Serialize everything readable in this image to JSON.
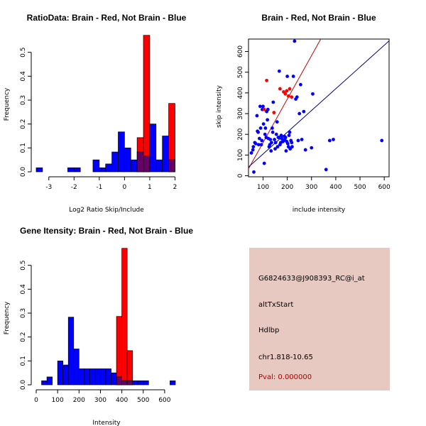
{
  "colors": {
    "red": "#ff0000",
    "blue": "#0000ff",
    "overlap": "#660066",
    "red_line": "#cc0000",
    "blue_line": "#000080",
    "panel_bg": "#e8c9c2",
    "pval_text": "#aa0000"
  },
  "chart_data": [
    {
      "type": "bar",
      "subtype": "overlaid-histogram",
      "title": "RatioData: Brain - Red, Not Brain - Blue",
      "xlabel": "Log2 Ratio Skip/Include",
      "ylabel": "Frequency",
      "xlim": [
        -3.5,
        2.1
      ],
      "ylim": [
        0,
        0.6
      ],
      "xticks": [
        -3,
        -2,
        -1,
        0,
        1,
        2
      ],
      "yticks": [
        0.0,
        0.1,
        0.2,
        0.3,
        0.4,
        0.5
      ],
      "series": [
        {
          "name": "Not Brain",
          "color": "blue",
          "bins": [
            {
              "x0": -3.5,
              "x1": -3.25,
              "value": 0.017
            },
            {
              "x0": -2.25,
              "x1": -2.0,
              "value": 0.017
            },
            {
              "x0": -2.0,
              "x1": -1.75,
              "value": 0.017
            },
            {
              "x0": -1.25,
              "x1": -1.0,
              "value": 0.05
            },
            {
              "x0": -1.0,
              "x1": -0.75,
              "value": 0.017
            },
            {
              "x0": -0.75,
              "x1": -0.5,
              "value": 0.033
            },
            {
              "x0": -0.5,
              "x1": -0.25,
              "value": 0.083
            },
            {
              "x0": -0.25,
              "x1": 0.0,
              "value": 0.167
            },
            {
              "x0": 0.0,
              "x1": 0.25,
              "value": 0.1
            },
            {
              "x0": 0.25,
              "x1": 0.5,
              "value": 0.05
            },
            {
              "x0": 0.5,
              "x1": 0.75,
              "value": 0.083
            },
            {
              "x0": 0.75,
              "x1": 1.0,
              "value": 0.067
            },
            {
              "x0": 1.0,
              "x1": 1.25,
              "value": 0.2
            },
            {
              "x0": 1.25,
              "x1": 1.5,
              "value": 0.05
            },
            {
              "x0": 1.5,
              "x1": 1.75,
              "value": 0.15
            },
            {
              "x0": 1.75,
              "x1": 2.0,
              "value": 0.05
            }
          ]
        },
        {
          "name": "Brain",
          "color": "red",
          "bins": [
            {
              "x0": 0.5,
              "x1": 0.75,
              "value": 0.143
            },
            {
              "x0": 0.75,
              "x1": 1.0,
              "value": 0.571
            },
            {
              "x0": 1.75,
              "x1": 2.0,
              "value": 0.286
            }
          ]
        }
      ]
    },
    {
      "type": "scatter",
      "title": "Brain - Red, Not Brain - Blue",
      "xlabel": "include intensity",
      "ylabel": "skip intensity",
      "xlim": [
        40,
        620
      ],
      "ylim": [
        -5,
        660
      ],
      "xticks": [
        100,
        200,
        300,
        400,
        500,
        600
      ],
      "yticks": [
        0,
        100,
        200,
        300,
        400,
        500,
        600
      ],
      "series": [
        {
          "name": "Not Brain",
          "color": "blue",
          "points": [
            [
              52,
              110
            ],
            [
              58,
              125
            ],
            [
              60,
              140
            ],
            [
              62,
              18
            ],
            [
              66,
              160
            ],
            [
              70,
              155
            ],
            [
              75,
              290
            ],
            [
              77,
              215
            ],
            [
              80,
              210
            ],
            [
              82,
              150
            ],
            [
              85,
              180
            ],
            [
              88,
              335
            ],
            [
              90,
              230
            ],
            [
              93,
              150
            ],
            [
              95,
              170
            ],
            [
              97,
              320
            ],
            [
              100,
              335
            ],
            [
              102,
              250
            ],
            [
              105,
              60
            ],
            [
              108,
              200
            ],
            [
              110,
              230
            ],
            [
              113,
              185
            ],
            [
              115,
              310
            ],
            [
              118,
              270
            ],
            [
              120,
              320
            ],
            [
              122,
              180
            ],
            [
              125,
              140
            ],
            [
              128,
              150
            ],
            [
              130,
              175
            ],
            [
              133,
              120
            ],
            [
              135,
              160
            ],
            [
              138,
              230
            ],
            [
              140,
              210
            ],
            [
              142,
              355
            ],
            [
              147,
              175
            ],
            [
              150,
              130
            ],
            [
              152,
              160
            ],
            [
              155,
              200
            ],
            [
              158,
              260
            ],
            [
              160,
              140
            ],
            [
              163,
              185
            ],
            [
              165,
              185
            ],
            [
              167,
              505
            ],
            [
              170,
              150
            ],
            [
              173,
              160
            ],
            [
              175,
              195
            ],
            [
              177,
              180
            ],
            [
              180,
              165
            ],
            [
              182,
              165
            ],
            [
              185,
              170
            ],
            [
              188,
              190
            ],
            [
              190,
              175
            ],
            [
              193,
              185
            ],
            [
              195,
              120
            ],
            [
              198,
              165
            ],
            [
              200,
              480
            ],
            [
              202,
              155
            ],
            [
              205,
              140
            ],
            [
              207,
              195
            ],
            [
              210,
              210
            ],
            [
              212,
              130
            ],
            [
              215,
              170
            ],
            [
              218,
              160
            ],
            [
              220,
              140
            ],
            [
              225,
              480
            ],
            [
              230,
              650
            ],
            [
              235,
              370
            ],
            [
              240,
              380
            ],
            [
              245,
              170
            ],
            [
              250,
              300
            ],
            [
              255,
              440
            ],
            [
              260,
              175
            ],
            [
              268,
              310
            ],
            [
              275,
              125
            ],
            [
              300,
              135
            ],
            [
              305,
              395
            ],
            [
              360,
              30
            ],
            [
              375,
              170
            ],
            [
              390,
              175
            ],
            [
              590,
              170
            ]
          ]
        },
        {
          "name": "Brain",
          "color": "red",
          "points": [
            [
              105,
              320
            ],
            [
              115,
              460
            ],
            [
              145,
              305
            ],
            [
              170,
              420
            ],
            [
              185,
              405
            ],
            [
              192,
              395
            ],
            [
              198,
              410
            ],
            [
              205,
              385
            ],
            [
              210,
              420
            ],
            [
              218,
              380
            ]
          ]
        }
      ],
      "fit_lines": [
        {
          "series": "Brain",
          "color": "red_line",
          "intercept": -50,
          "slope": 2.1
        },
        {
          "series": "Not Brain",
          "color": "blue_line",
          "intercept": 0,
          "slope": 1.05
        }
      ]
    },
    {
      "type": "bar",
      "subtype": "overlaid-histogram",
      "title": "Gene Itensity: Brain - Red, Not Brain - Blue",
      "xlabel": "Intensity",
      "ylabel": "Frequency",
      "xlim": [
        0,
        660
      ],
      "ylim": [
        0,
        0.6
      ],
      "xticks": [
        0,
        100,
        200,
        300,
        400,
        500,
        600
      ],
      "yticks": [
        0.0,
        0.1,
        0.2,
        0.3,
        0.4,
        0.5
      ],
      "series": [
        {
          "name": "Not Brain",
          "color": "blue",
          "bins": [
            {
              "x0": 25,
              "x1": 50,
              "value": 0.017
            },
            {
              "x0": 50,
              "x1": 75,
              "value": 0.033
            },
            {
              "x0": 100,
              "x1": 125,
              "value": 0.1
            },
            {
              "x0": 125,
              "x1": 150,
              "value": 0.083
            },
            {
              "x0": 150,
              "x1": 175,
              "value": 0.283
            },
            {
              "x0": 175,
              "x1": 200,
              "value": 0.15
            },
            {
              "x0": 200,
              "x1": 225,
              "value": 0.067
            },
            {
              "x0": 225,
              "x1": 250,
              "value": 0.067
            },
            {
              "x0": 250,
              "x1": 275,
              "value": 0.067
            },
            {
              "x0": 275,
              "x1": 300,
              "value": 0.067
            },
            {
              "x0": 300,
              "x1": 325,
              "value": 0.067
            },
            {
              "x0": 325,
              "x1": 350,
              "value": 0.067
            },
            {
              "x0": 350,
              "x1": 375,
              "value": 0.05
            },
            {
              "x0": 375,
              "x1": 400,
              "value": 0.033
            },
            {
              "x0": 400,
              "x1": 425,
              "value": 0.017
            },
            {
              "x0": 425,
              "x1": 450,
              "value": 0.017
            },
            {
              "x0": 450,
              "x1": 475,
              "value": 0.017
            },
            {
              "x0": 475,
              "x1": 500,
              "value": 0.017
            },
            {
              "x0": 500,
              "x1": 525,
              "value": 0.017
            },
            {
              "x0": 625,
              "x1": 650,
              "value": 0.017
            }
          ]
        },
        {
          "name": "Brain",
          "color": "red",
          "bins": [
            {
              "x0": 375,
              "x1": 400,
              "value": 0.286
            },
            {
              "x0": 400,
              "x1": 425,
              "value": 0.571
            },
            {
              "x0": 425,
              "x1": 450,
              "value": 0.143
            }
          ]
        }
      ]
    }
  ],
  "info": {
    "probe_id": "G6824633@J908393_RC@i_at",
    "event_type": "altTxStart",
    "gene": "Hdlbp",
    "location": "chr1.818-10.65",
    "pval": "Pval: 0.000000"
  }
}
